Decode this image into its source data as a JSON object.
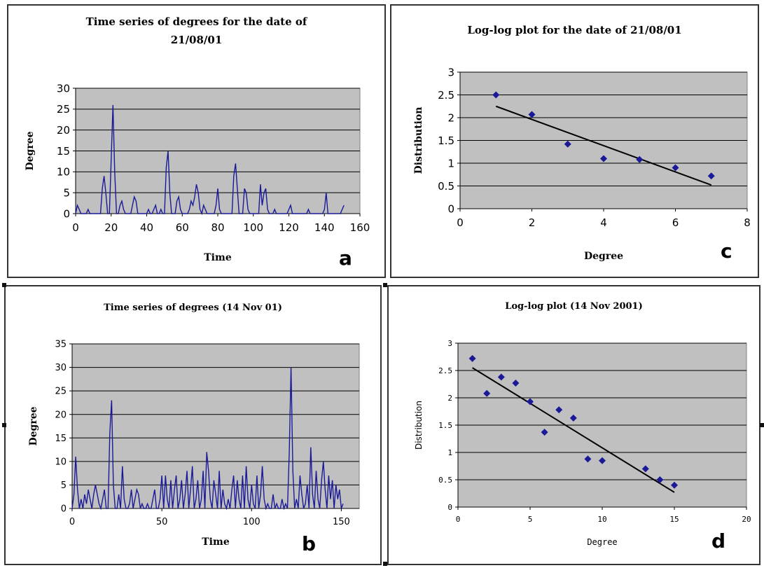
{
  "chart_data": [
    {
      "type": "line",
      "panel_letter": "a",
      "title_lines": [
        "Time series of degrees for the date of",
        "21/08/01"
      ],
      "xlabel": "Time",
      "ylabel": "Degree",
      "xlim": [
        0,
        160
      ],
      "ylim": [
        0,
        30
      ],
      "xticks": [
        0,
        20,
        40,
        60,
        80,
        100,
        120,
        140,
        160
      ],
      "yticks": [
        0,
        5,
        10,
        15,
        20,
        25,
        30
      ],
      "grid": true,
      "plot_background": "#c0c0c0",
      "line_color": "#1a1a99",
      "x": [
        0,
        1,
        2,
        3,
        4,
        5,
        6,
        7,
        8,
        9,
        10,
        11,
        12,
        13,
        14,
        15,
        16,
        17,
        18,
        19,
        20,
        21,
        22,
        23,
        24,
        25,
        26,
        27,
        28,
        29,
        30,
        31,
        32,
        33,
        34,
        35,
        36,
        37,
        38,
        39,
        40,
        41,
        42,
        43,
        44,
        45,
        46,
        47,
        48,
        49,
        50,
        51,
        52,
        53,
        54,
        55,
        56,
        57,
        58,
        59,
        60,
        61,
        62,
        63,
        64,
        65,
        66,
        67,
        68,
        69,
        70,
        71,
        72,
        73,
        74,
        75,
        76,
        77,
        78,
        79,
        80,
        81,
        82,
        83,
        84,
        85,
        86,
        87,
        88,
        89,
        90,
        91,
        92,
        93,
        94,
        95,
        96,
        97,
        98,
        99,
        100,
        101,
        102,
        103,
        104,
        105,
        106,
        107,
        108,
        109,
        110,
        111,
        112,
        113,
        114,
        115,
        116,
        117,
        118,
        119,
        120,
        121,
        122,
        123,
        124,
        125,
        126,
        127,
        128,
        129,
        130,
        131,
        132,
        133,
        134,
        135,
        136,
        137,
        138,
        139,
        140,
        141,
        142,
        143,
        144,
        145,
        146,
        147,
        148,
        149,
        150,
        151
      ],
      "y": [
        0,
        2,
        1,
        0,
        0,
        0,
        0,
        1,
        0,
        0,
        0,
        0,
        0,
        0,
        0,
        6,
        9,
        5,
        0,
        0,
        13,
        26,
        10,
        0,
        0,
        2,
        3,
        1,
        0,
        0,
        0,
        0,
        2,
        4,
        3,
        0,
        0,
        0,
        0,
        0,
        0,
        1,
        0,
        0,
        1,
        2,
        0,
        0,
        1,
        0,
        0,
        11,
        15,
        5,
        0,
        0,
        0,
        3,
        4,
        1,
        0,
        0,
        0,
        0,
        1,
        3,
        2,
        4,
        7,
        5,
        1,
        0,
        2,
        1,
        0,
        0,
        0,
        0,
        0,
        2,
        6,
        1,
        0,
        0,
        0,
        0,
        0,
        0,
        0,
        9,
        12,
        6,
        0,
        0,
        0,
        6,
        5,
        1,
        0,
        0,
        0,
        0,
        0,
        0,
        7,
        2,
        5,
        6,
        1,
        0,
        0,
        0,
        1,
        0,
        0,
        0,
        0,
        0,
        0,
        0,
        1,
        2,
        0,
        0,
        0,
        0,
        0,
        0,
        0,
        0,
        0,
        1,
        0,
        0,
        0,
        0,
        0,
        0,
        0,
        0,
        1,
        5,
        0,
        0,
        0,
        0,
        0,
        0,
        0,
        0,
        1,
        2
      ]
    },
    {
      "type": "scatter",
      "panel_letter": "c",
      "title_lines": [
        "Log-log plot for the date of 21/08/01"
      ],
      "xlabel": "Degree",
      "ylabel": "Distribution",
      "xlim": [
        0,
        8
      ],
      "ylim": [
        0,
        3
      ],
      "xticks": [
        0,
        2,
        4,
        6,
        8
      ],
      "yticks": [
        0,
        0.5,
        1,
        1.5,
        2,
        2.5,
        3
      ],
      "grid": true,
      "plot_background": "#c0c0c0",
      "marker_color": "#1a1a99",
      "x": [
        1,
        2,
        3,
        4,
        5,
        6,
        7
      ],
      "y": [
        2.5,
        2.07,
        1.42,
        1.1,
        1.08,
        0.9,
        0.72
      ],
      "trendline": [
        [
          1,
          2.25
        ],
        [
          7,
          0.52
        ]
      ]
    },
    {
      "type": "line",
      "panel_letter": "b",
      "title_lines": [
        "Time series of degrees (14 Nov 01)"
      ],
      "xlabel": "Time",
      "ylabel": "Degree",
      "xlim": [
        0,
        160
      ],
      "ylim": [
        0,
        35
      ],
      "xticks": [
        0,
        50,
        100,
        150
      ],
      "yticks": [
        0,
        5,
        10,
        15,
        20,
        25,
        30,
        35
      ],
      "grid": true,
      "plot_background": "#c0c0c0",
      "line_color": "#1a1a99",
      "x": [
        0,
        1,
        2,
        3,
        4,
        5,
        6,
        7,
        8,
        9,
        10,
        11,
        12,
        13,
        14,
        15,
        16,
        17,
        18,
        19,
        20,
        21,
        22,
        23,
        24,
        25,
        26,
        27,
        28,
        29,
        30,
        31,
        32,
        33,
        34,
        35,
        36,
        37,
        38,
        39,
        40,
        41,
        42,
        43,
        44,
        45,
        46,
        47,
        48,
        49,
        50,
        51,
        52,
        53,
        54,
        55,
        56,
        57,
        58,
        59,
        60,
        61,
        62,
        63,
        64,
        65,
        66,
        67,
        68,
        69,
        70,
        71,
        72,
        73,
        74,
        75,
        76,
        77,
        78,
        79,
        80,
        81,
        82,
        83,
        84,
        85,
        86,
        87,
        88,
        89,
        90,
        91,
        92,
        93,
        94,
        95,
        96,
        97,
        98,
        99,
        100,
        101,
        102,
        103,
        104,
        105,
        106,
        107,
        108,
        109,
        110,
        111,
        112,
        113,
        114,
        115,
        116,
        117,
        118,
        119,
        120,
        121,
        122,
        123,
        124,
        125,
        126,
        127,
        128,
        129,
        130,
        131,
        132,
        133,
        134,
        135,
        136,
        137,
        138,
        139,
        140,
        141,
        142,
        143,
        144,
        145,
        146,
        147,
        148,
        149,
        150,
        151
      ],
      "y": [
        0,
        3,
        11,
        4,
        0,
        2,
        0,
        3,
        1,
        4,
        2,
        0,
        3,
        5,
        3,
        1,
        0,
        2,
        4,
        0,
        0,
        16,
        23,
        5,
        0,
        0,
        3,
        0,
        9,
        2,
        0,
        0,
        1,
        4,
        0,
        2,
        4,
        3,
        0,
        1,
        0,
        0,
        1,
        0,
        0,
        2,
        4,
        0,
        0,
        2,
        7,
        0,
        7,
        2,
        0,
        6,
        0,
        4,
        7,
        0,
        2,
        6,
        0,
        3,
        8,
        0,
        4,
        9,
        0,
        2,
        6,
        0,
        2,
        8,
        0,
        12,
        8,
        2,
        0,
        6,
        3,
        0,
        8,
        0,
        4,
        1,
        0,
        2,
        0,
        4,
        7,
        0,
        6,
        2,
        0,
        7,
        0,
        9,
        2,
        0,
        5,
        1,
        0,
        7,
        0,
        3,
        9,
        2,
        0,
        1,
        0,
        0,
        3,
        0,
        1,
        0,
        0,
        2,
        0,
        1,
        0,
        12,
        30,
        8,
        0,
        2,
        0,
        7,
        3,
        0,
        1,
        5,
        0,
        13,
        3,
        0,
        8,
        2,
        0,
        6,
        10,
        4,
        0,
        7,
        2,
        6,
        0,
        5,
        2,
        4,
        0,
        1
      ]
    },
    {
      "type": "scatter",
      "panel_letter": "d",
      "title_lines": [
        "Log-log plot (14 Nov 2001)"
      ],
      "xlabel": "Degree",
      "ylabel": "Distribution",
      "xlim": [
        0,
        20
      ],
      "ylim": [
        0,
        3
      ],
      "xticks": [
        0,
        5,
        10,
        15,
        20
      ],
      "yticks": [
        0,
        0.5,
        1,
        1.5,
        2,
        2.5,
        3
      ],
      "grid": true,
      "plot_background": "#c0c0c0",
      "marker_color": "#1a1a99",
      "x": [
        1,
        2,
        3,
        4,
        5,
        6,
        7,
        8,
        9,
        10,
        13,
        14,
        15
      ],
      "y": [
        2.72,
        2.08,
        2.38,
        2.27,
        1.93,
        1.37,
        1.78,
        1.63,
        0.88,
        0.85,
        0.7,
        0.5,
        0.4
      ],
      "trendline": [
        [
          1,
          2.55
        ],
        [
          15,
          0.27
        ]
      ]
    }
  ]
}
